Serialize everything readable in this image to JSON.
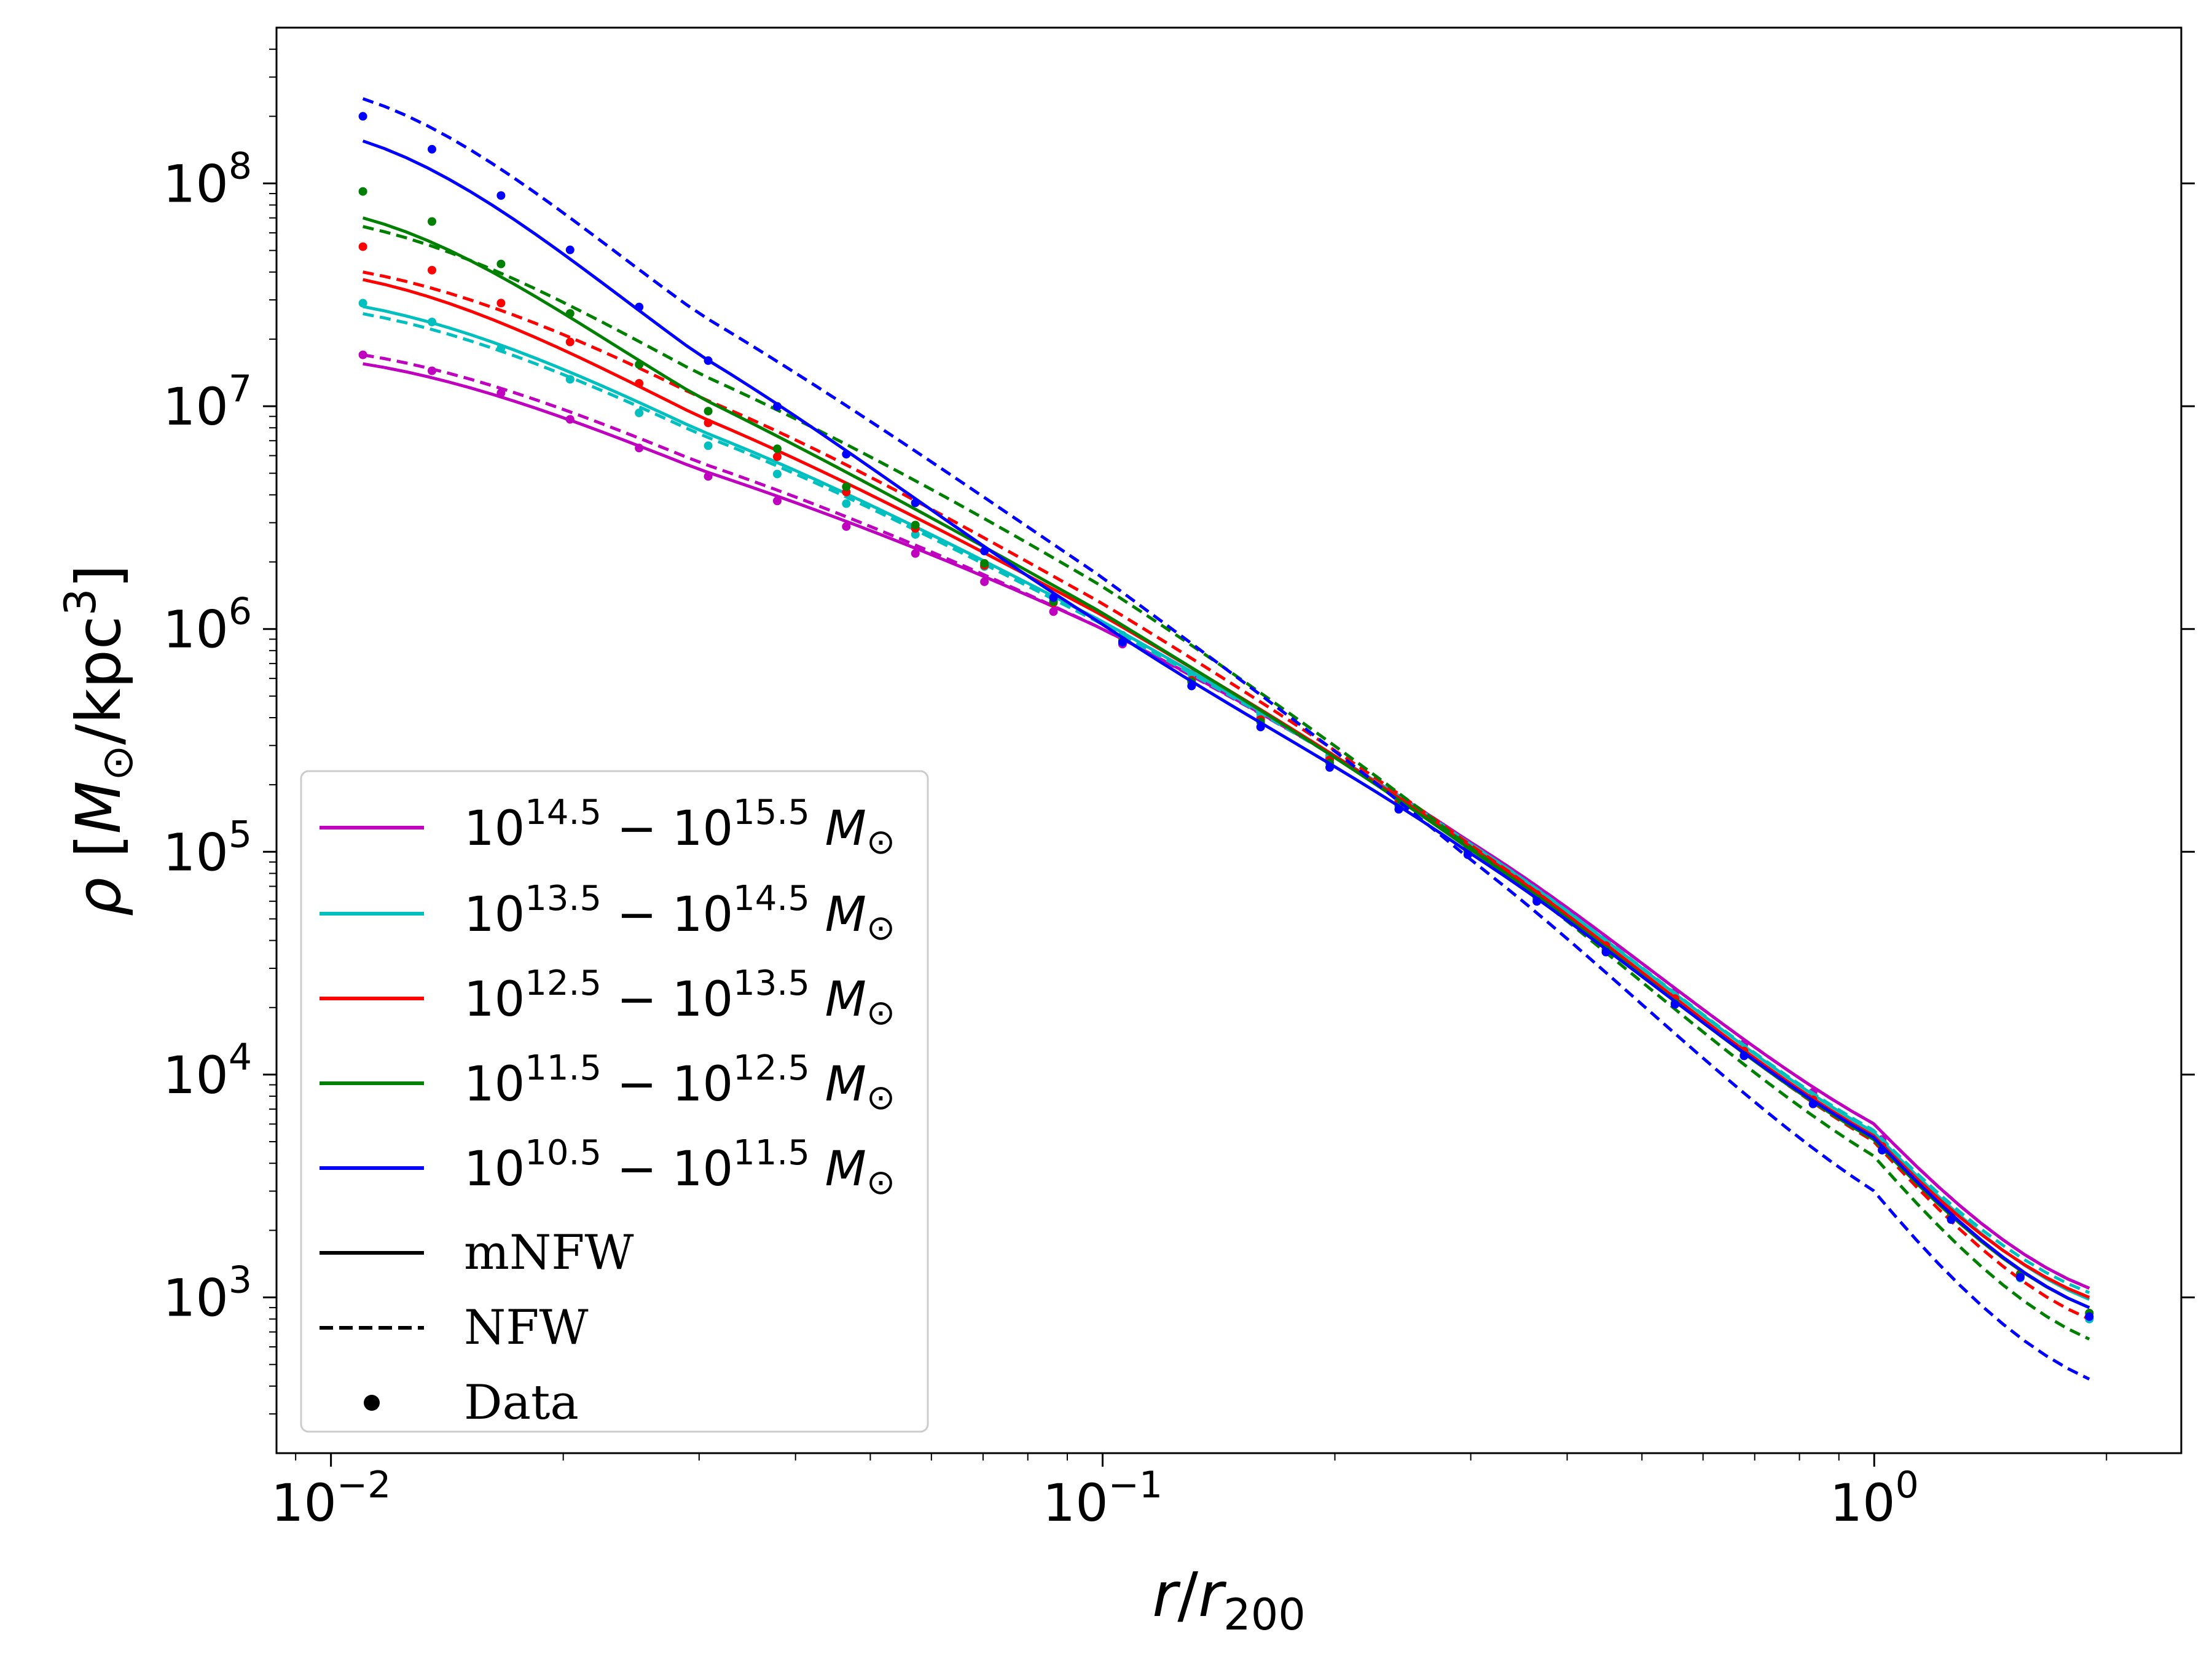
{
  "chart_data": {
    "type": "line",
    "xlabel": "r/r_200",
    "ylabel": "ρ [M_⊙/kpc^3]",
    "xscale": "log",
    "yscale": "log",
    "xlim": [
      0.0085,
      2.5
    ],
    "ylim": [
      200,
      500000000
    ],
    "xticks": [
      {
        "value": 0.01,
        "label": "10",
        "exp": "−2"
      },
      {
        "value": 0.1,
        "label": "10",
        "exp": "−1"
      },
      {
        "value": 1,
        "label": "10",
        "exp": "0"
      }
    ],
    "yticks": [
      {
        "value": 1000,
        "label": "10",
        "exp": "3"
      },
      {
        "value": 10000,
        "label": "10",
        "exp": "4"
      },
      {
        "value": 100000,
        "label": "10",
        "exp": "5"
      },
      {
        "value": 1000000,
        "label": "10",
        "exp": "6"
      },
      {
        "value": 10000000,
        "label": "10",
        "exp": "7"
      },
      {
        "value": 100000000,
        "label": "10",
        "exp": "8"
      }
    ],
    "grid": false,
    "legend_position": "lower-left",
    "series": [
      {
        "name": "10^14.5 − 10^15.5 M_⊙",
        "color": "#bf00bf",
        "x": [
          0.011,
          0.03,
          0.1,
          0.3,
          1.0,
          1.9
        ],
        "mnfw": [
          15500000,
          5200000,
          1000000,
          110000,
          6000,
          1100
        ],
        "nfw": [
          17000000,
          5600000,
          1000000,
          110000,
          6000,
          1100
        ],
        "data": [
          17000000,
          5000000,
          950000,
          105000,
          5600,
          800
        ]
      },
      {
        "name": "10^13.5 − 10^14.5 M_⊙",
        "color": "#00bfbf",
        "x": [
          0.011,
          0.03,
          0.1,
          0.3,
          1.0,
          1.9
        ],
        "mnfw": [
          28000000,
          7800000,
          1080000,
          108000,
          5500,
          980
        ],
        "nfw": [
          26000000,
          7500000,
          1050000,
          108000,
          5600,
          1050
        ],
        "data": [
          29000000,
          6900000,
          1050000,
          104000,
          5200,
          800
        ]
      },
      {
        "name": "10^12.5 − 10^13.5 M_⊙",
        "color": "#ff0000",
        "x": [
          0.011,
          0.03,
          0.1,
          0.3,
          1.0,
          1.9
        ],
        "mnfw": [
          37000000,
          9000000,
          1150000,
          105000,
          5300,
          1000
        ],
        "nfw": [
          40000000,
          11000000,
          1300000,
          107000,
          5000,
          800
        ],
        "data": [
          52000000,
          8800000,
          1000000,
          102000,
          5200,
          850
        ]
      },
      {
        "name": "10^11.5 − 10^12.5 M_⊙",
        "color": "#008000",
        "x": [
          0.011,
          0.03,
          0.1,
          0.3,
          1.0,
          1.9
        ],
        "mnfw": [
          70000000,
          11000000,
          1180000,
          102000,
          5100,
          900
        ],
        "nfw": [
          64000000,
          14000000,
          1550000,
          104000,
          4300,
          650
        ],
        "data": [
          92000000,
          10000000,
          1000000,
          98000,
          5000,
          850
        ]
      },
      {
        "name": "10^10.5 − 10^11.5 M_⊙",
        "color": "#0000ff",
        "x": [
          0.011,
          0.03,
          0.1,
          0.3,
          1.0,
          1.9
        ],
        "mnfw": [
          155000000,
          17000000,
          1050000,
          98000,
          5200,
          900
        ],
        "nfw": [
          240000000,
          26000000,
          1700000,
          92000,
          3000,
          430
        ],
        "data": [
          200000000,
          17000000,
          1000000,
          95000,
          5000,
          820
        ]
      }
    ],
    "legend": [
      {
        "type": "line",
        "style": "solid",
        "color": "#bf00bf",
        "base1": "10",
        "exp1": "14.5",
        "base2": "10",
        "exp2": "15.5",
        "unit": "M",
        "sub": "⊙"
      },
      {
        "type": "line",
        "style": "solid",
        "color": "#00bfbf",
        "base1": "10",
        "exp1": "13.5",
        "base2": "10",
        "exp2": "14.5",
        "unit": "M",
        "sub": "⊙"
      },
      {
        "type": "line",
        "style": "solid",
        "color": "#ff0000",
        "base1": "10",
        "exp1": "12.5",
        "base2": "10",
        "exp2": "13.5",
        "unit": "M",
        "sub": "⊙"
      },
      {
        "type": "line",
        "style": "solid",
        "color": "#008000",
        "base1": "10",
        "exp1": "11.5",
        "base2": "10",
        "exp2": "12.5",
        "unit": "M",
        "sub": "⊙"
      },
      {
        "type": "line",
        "style": "solid",
        "color": "#0000ff",
        "base1": "10",
        "exp1": "10.5",
        "base2": "10",
        "exp2": "11.5",
        "unit": "M",
        "sub": "⊙"
      },
      {
        "type": "line",
        "style": "solid",
        "color": "#000000",
        "label": "mNFW"
      },
      {
        "type": "line",
        "style": "dashed",
        "color": "#000000",
        "label": "NFW"
      },
      {
        "type": "marker",
        "color": "#000000",
        "label": "Data"
      }
    ]
  }
}
